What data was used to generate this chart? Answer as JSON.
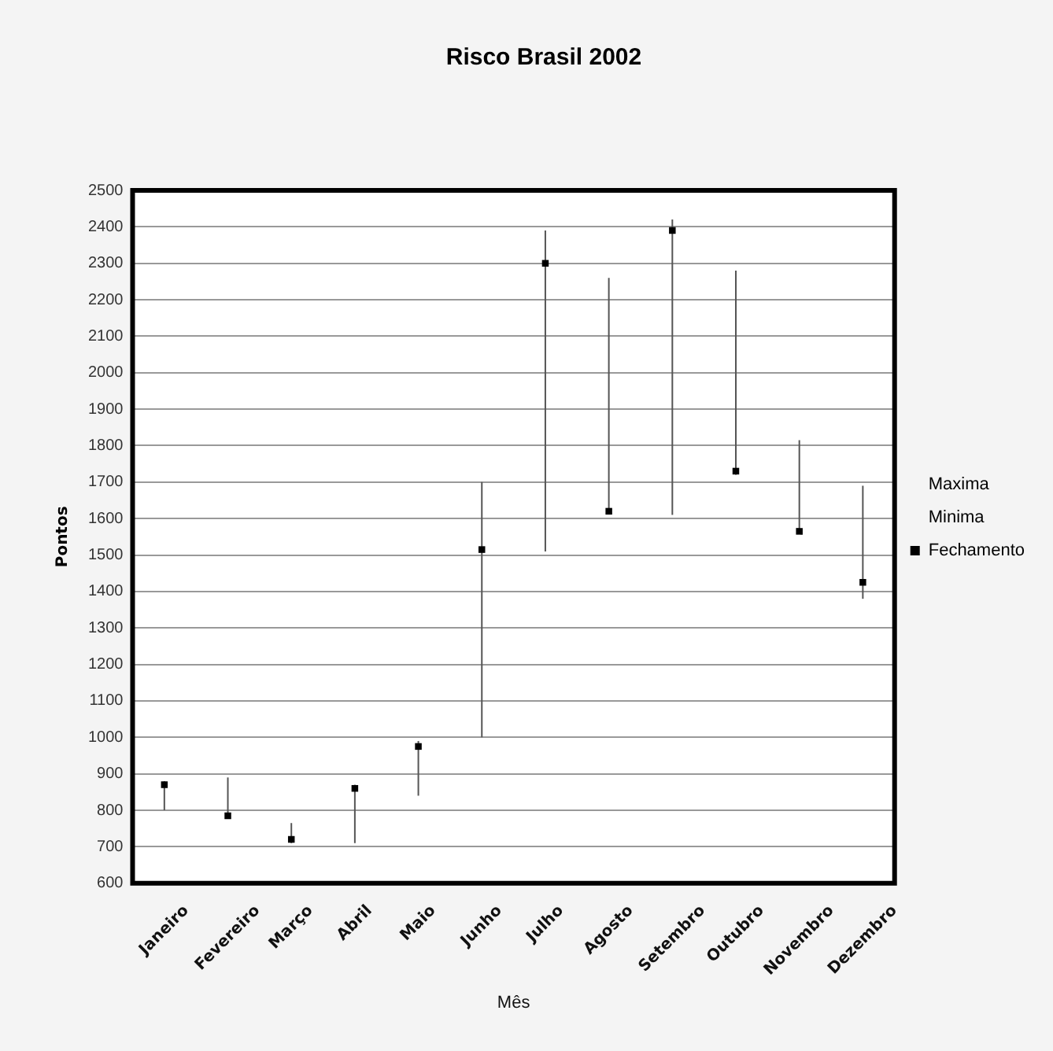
{
  "chart_data": {
    "type": "scatter",
    "title": "Risco Brasil 2002",
    "xlabel": "Mês",
    "ylabel": "Pontos",
    "categories": [
      "Janeiro",
      "Fevereiro",
      "Março",
      "Abril",
      "Maio",
      "Junho",
      "Julho",
      "Agosto",
      "Setembro",
      "Outubro",
      "Novembro",
      "Dezembro"
    ],
    "series": [
      {
        "name": "Fechamento",
        "color": "#000000",
        "marker": "square",
        "values": [
          870,
          785,
          720,
          860,
          975,
          1515,
          2300,
          1620,
          2390,
          1730,
          1565,
          1425
        ],
        "errors": [
          [
            800,
            880
          ],
          [
            780,
            890
          ],
          [
            710,
            765
          ],
          [
            710,
            870
          ],
          [
            840,
            990
          ],
          [
            1000,
            1700
          ],
          [
            1510,
            2390
          ],
          [
            1620,
            2260
          ],
          [
            1610,
            2420
          ],
          [
            1720,
            2280
          ],
          [
            1560,
            1815
          ],
          [
            1380,
            1690
          ]
        ]
      }
    ],
    "annotations": [
      "Maxima",
      "Minima"
    ],
    "ylim": [
      600,
      2500
    ],
    "yticks": [
      600,
      700,
      800,
      900,
      1000,
      1100,
      1200,
      1300,
      1400,
      1500,
      1600,
      1700,
      1800,
      1900,
      2000,
      2100,
      2200,
      2300,
      2400,
      2500
    ],
    "grid": "y",
    "legend": "right"
  }
}
